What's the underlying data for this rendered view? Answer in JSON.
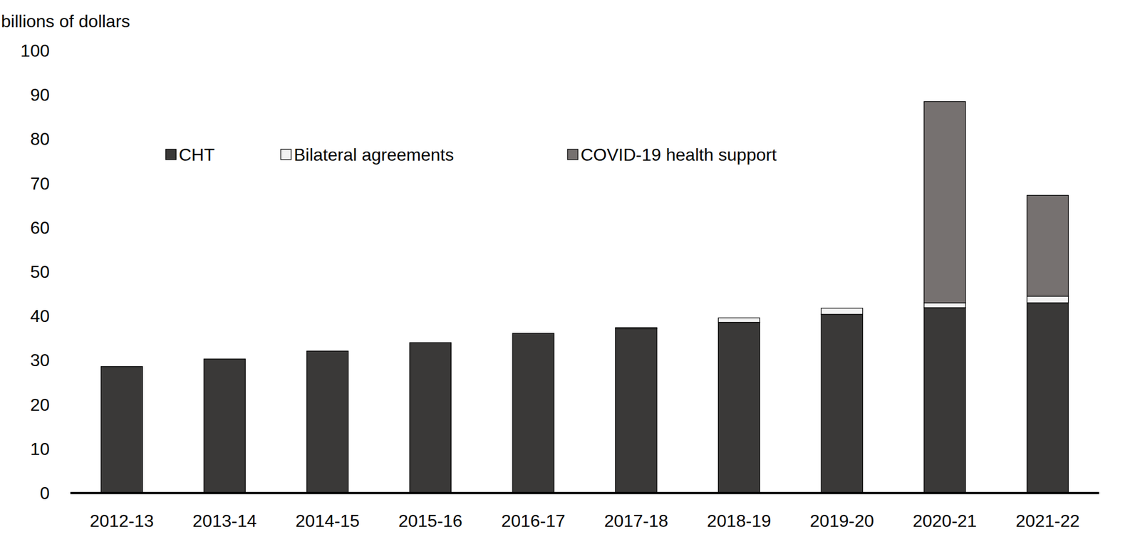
{
  "chart_data": {
    "type": "bar",
    "stacked": true,
    "grid": false,
    "legend": "top",
    "y_label": "billions of dollars",
    "categories": [
      "2012-13",
      "2013-14",
      "2014-15",
      "2015-16",
      "2016-17",
      "2017-18",
      "2018-19",
      "2019-20",
      "2020-21",
      "2021-22"
    ],
    "series": [
      {
        "name": "CHT",
        "color": "#3a3938",
        "values": [
          28.6,
          30.3,
          32.1,
          34.0,
          36.1,
          37.2,
          38.6,
          40.4,
          41.9,
          43.0
        ]
      },
      {
        "name": "Bilateral agreements",
        "color": "#f2f2f2",
        "values": [
          0,
          0,
          0,
          0,
          0,
          0.2,
          1.0,
          1.4,
          1.1,
          1.5
        ]
      },
      {
        "name": "COVID-19 health support",
        "color": "#767170",
        "values": [
          0,
          0,
          0,
          0,
          0,
          0,
          0,
          0,
          45.5,
          22.8
        ]
      }
    ],
    "ylim": [
      0,
      100
    ],
    "yticks": [
      0,
      10,
      20,
      30,
      40,
      50,
      60,
      70,
      80,
      90,
      100
    ]
  }
}
